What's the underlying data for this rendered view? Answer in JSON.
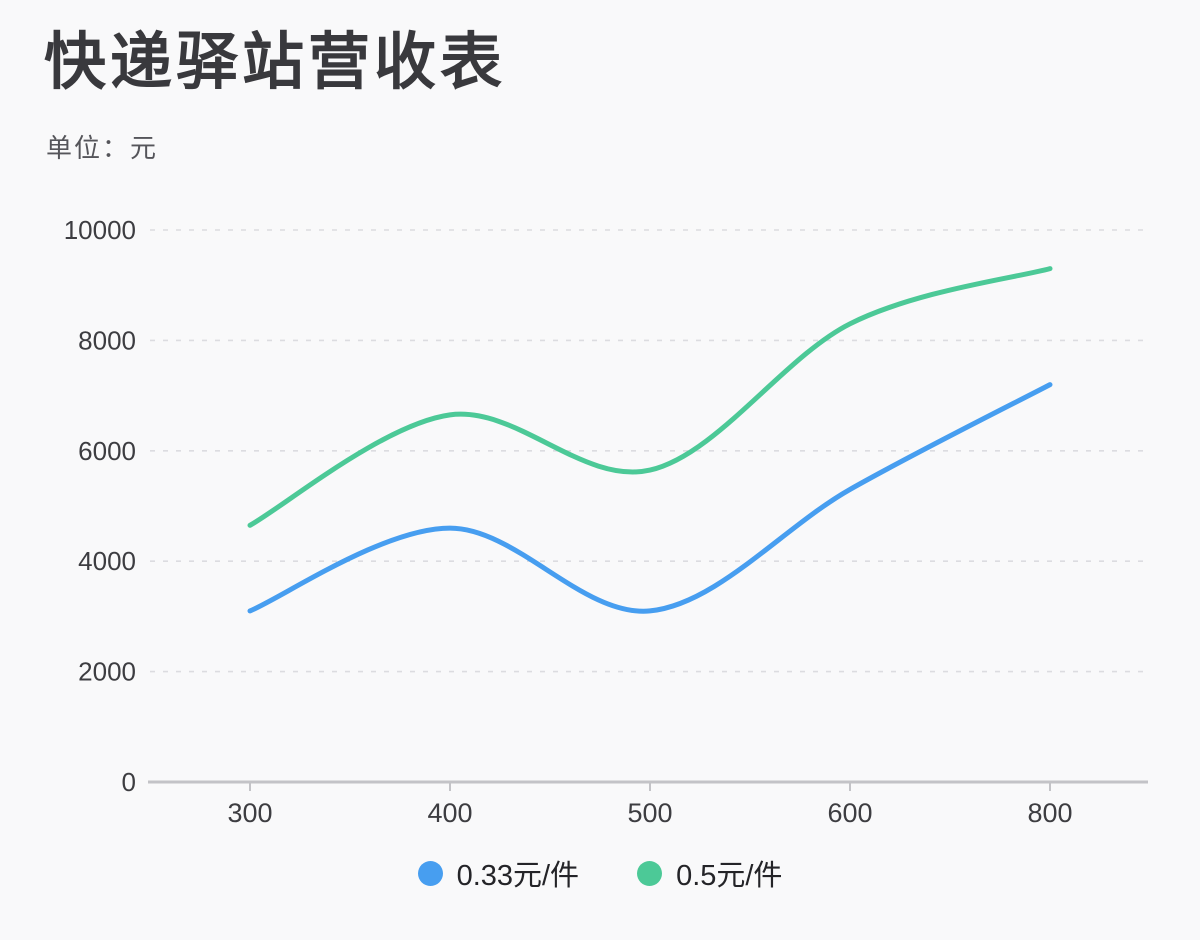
{
  "page": {
    "title": "快递驿站营收表",
    "unit_label": "单位：元"
  },
  "colors": {
    "series_blue": "#479EF0",
    "series_green": "#4CC997",
    "axis_line": "#c3c3c7",
    "grid_line": "#dcdce0",
    "axis_text": "#3d3d41",
    "background": "#f9f9fa"
  },
  "chart_data": {
    "type": "line",
    "title": "快递驿站营收表",
    "ylabel": "单位：元",
    "xlabel": "",
    "smooth": true,
    "grid": true,
    "legend_position": "bottom",
    "categories": [
      "300",
      "400",
      "500",
      "600",
      "800"
    ],
    "series": [
      {
        "name": "0.33元/件",
        "color": "#479EF0",
        "values": [
          3100,
          4600,
          3100,
          5300,
          7200
        ]
      },
      {
        "name": "0.5元/件",
        "color": "#4CC997",
        "values": [
          4650,
          6650,
          5650,
          8300,
          9300
        ]
      }
    ],
    "y_axis": {
      "min": 0,
      "max": 10000,
      "step": 2000,
      "tick_labels": [
        "0",
        "2000",
        "4000",
        "6000",
        "8000",
        "10000"
      ]
    }
  }
}
